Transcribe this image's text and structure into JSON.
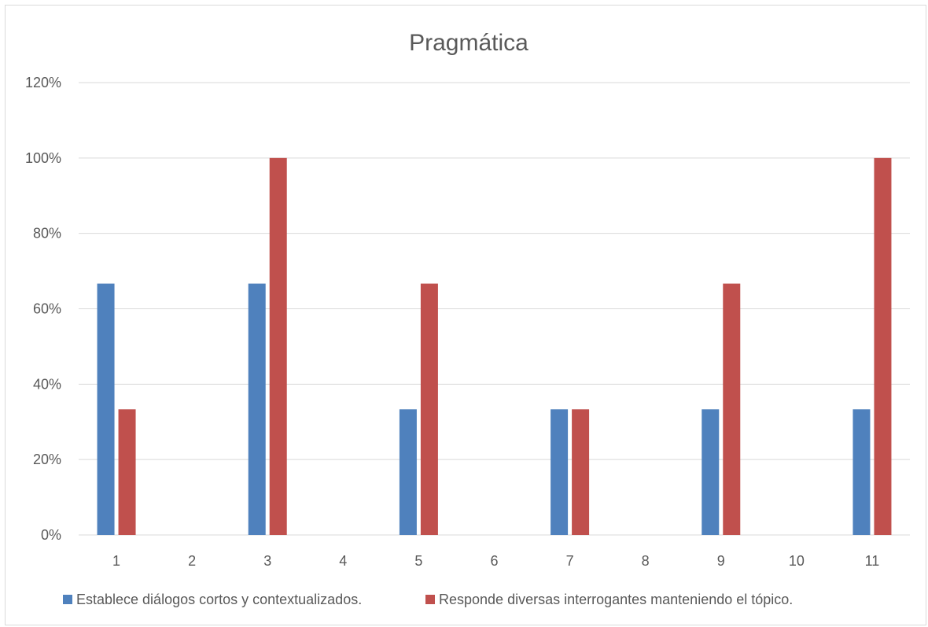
{
  "chart_data": {
    "type": "bar",
    "title": "Pragmática",
    "xlabel": "",
    "ylabel": "",
    "categories": [
      "1",
      "2",
      "3",
      "4",
      "5",
      "6",
      "7",
      "8",
      "9",
      "10",
      "11"
    ],
    "yticks": [
      "0%",
      "20%",
      "40%",
      "60%",
      "80%",
      "100%",
      "120%"
    ],
    "ylim": [
      0,
      1.2
    ],
    "grid": true,
    "legend_position": "bottom",
    "series": [
      {
        "name": "Establece diálogos cortos y contextualizados.",
        "color": "#4f81bd",
        "values": [
          0.6667,
          0,
          0.6667,
          0,
          0.3333,
          0,
          0.3333,
          0,
          0.3333,
          0,
          0.3333
        ]
      },
      {
        "name": "Responde diversas interrogantes manteniendo el tópico.",
        "color": "#c0504d",
        "values": [
          0.3333,
          0,
          1.0,
          0,
          0.6667,
          0,
          0.3333,
          0,
          0.6667,
          0,
          1.0
        ]
      }
    ]
  }
}
